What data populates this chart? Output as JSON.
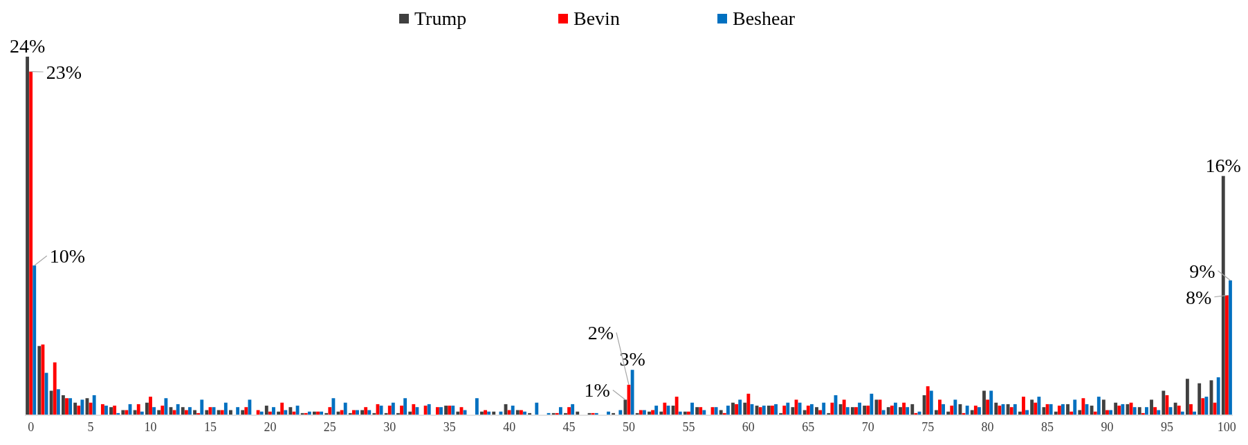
{
  "chart_data": {
    "type": "bar",
    "legend": "top",
    "categories": [
      "0",
      null,
      null,
      null,
      null,
      "5",
      null,
      null,
      null,
      null,
      "10",
      null,
      null,
      null,
      null,
      "15",
      null,
      null,
      null,
      null,
      "20",
      null,
      null,
      null,
      null,
      "25",
      null,
      null,
      null,
      null,
      "30",
      null,
      null,
      null,
      null,
      "35",
      null,
      null,
      null,
      null,
      "40",
      null,
      null,
      null,
      null,
      "45",
      null,
      null,
      null,
      null,
      "50",
      null,
      null,
      null,
      null,
      "55",
      null,
      null,
      null,
      null,
      "60",
      null,
      null,
      null,
      null,
      "65",
      null,
      null,
      null,
      null,
      "70",
      null,
      null,
      null,
      null,
      "75",
      null,
      null,
      null,
      null,
      "80",
      null,
      null,
      null,
      null,
      "85",
      null,
      null,
      null,
      null,
      "90",
      null,
      null,
      null,
      null,
      "95",
      null,
      null,
      null,
      null,
      "100"
    ],
    "series": [
      {
        "name": "Trump",
        "color": "#404040",
        "values": [
          24,
          4.6,
          1.6,
          1.3,
          0.8,
          1.1,
          0,
          0.5,
          0.3,
          0.3,
          0.8,
          0.3,
          0.5,
          0.5,
          0.3,
          0.3,
          0.3,
          0.3,
          0.3,
          0,
          0.6,
          0.2,
          0.5,
          0.1,
          0.2,
          0.1,
          0.2,
          0.1,
          0.3,
          0.1,
          0.1,
          0.1,
          0.2,
          0,
          0,
          0.6,
          0.2,
          0,
          0.2,
          0.2,
          0.7,
          0.3,
          0.1,
          0,
          0.1,
          0.1,
          0.2,
          0.1,
          0,
          0.1,
          1,
          0.1,
          0.2,
          0.2,
          0.6,
          0.2,
          0.5,
          0,
          0.3,
          0.8,
          0.8,
          0.6,
          0.6,
          0.1,
          0.5,
          0.3,
          0.5,
          0.1,
          0.7,
          0.5,
          0.6,
          1.0,
          0.5,
          0.5,
          0.7,
          1.3,
          0.3,
          0.2,
          0.7,
          0.3,
          1.6,
          0.8,
          0.7,
          0.2,
          1.0,
          0.5,
          0.2,
          0.7,
          0.3,
          0.6,
          1.0,
          0.8,
          0.7,
          0.5,
          1.0,
          1.6,
          0.8,
          2.4,
          2.1,
          2.3,
          16
        ],
        "value_labels": [
          "24%",
          null,
          null,
          null,
          null,
          null,
          null,
          null,
          null,
          null,
          null,
          null,
          null,
          null,
          null,
          null,
          null,
          null,
          null,
          null,
          null,
          null,
          null,
          null,
          null,
          null,
          null,
          null,
          null,
          null,
          null,
          null,
          null,
          null,
          null,
          null,
          null,
          null,
          null,
          null,
          null,
          null,
          null,
          null,
          null,
          null,
          null,
          null,
          null,
          null,
          "1%",
          null,
          null,
          null,
          null,
          null,
          null,
          null,
          null,
          null,
          null,
          null,
          null,
          null,
          null,
          null,
          null,
          null,
          null,
          null,
          null,
          null,
          null,
          null,
          null,
          null,
          null,
          null,
          null,
          null,
          null,
          null,
          null,
          null,
          null,
          null,
          null,
          null,
          null,
          null,
          null,
          null,
          null,
          null,
          null,
          null,
          null,
          null,
          null,
          null,
          "16%"
        ]
      },
      {
        "name": "Bevin",
        "color": "#ff0000",
        "values": [
          23,
          4.7,
          3.5,
          1.1,
          0.6,
          0.8,
          0.7,
          0.6,
          0.3,
          0.7,
          1.2,
          0.6,
          0.3,
          0.3,
          0.1,
          0.5,
          0.3,
          0,
          0.5,
          0.3,
          0.2,
          0.8,
          0.2,
          0.1,
          0.2,
          0.5,
          0.3,
          0.3,
          0.5,
          0.7,
          0.6,
          0.6,
          0.7,
          0.6,
          0.5,
          0.6,
          0.5,
          0,
          0.3,
          0,
          0.3,
          0.3,
          0,
          0,
          0.1,
          0.5,
          0,
          0.1,
          0,
          0,
          2,
          0.3,
          0.3,
          0.8,
          1.2,
          0.2,
          0.5,
          0.5,
          0.1,
          0.7,
          1.4,
          0.5,
          0.6,
          0.6,
          1.0,
          0.6,
          0.3,
          0.8,
          1.0,
          0.5,
          0.6,
          1.0,
          0.6,
          0.8,
          0.1,
          1.9,
          1.0,
          0.6,
          0.1,
          0.6,
          1.0,
          0.6,
          0.5,
          1.2,
          0.8,
          0.7,
          0.6,
          0.2,
          1.1,
          0.2,
          0.3,
          0.6,
          0.8,
          0.1,
          0.5,
          1.3,
          0.6,
          0.7,
          1.1,
          0.8,
          8
        ],
        "value_labels": [
          "23%",
          null,
          null,
          null,
          null,
          null,
          null,
          null,
          null,
          null,
          null,
          null,
          null,
          null,
          null,
          null,
          null,
          null,
          null,
          null,
          null,
          null,
          null,
          null,
          null,
          null,
          null,
          null,
          null,
          null,
          null,
          null,
          null,
          null,
          null,
          null,
          null,
          null,
          null,
          null,
          null,
          null,
          null,
          null,
          null,
          null,
          null,
          null,
          null,
          null,
          "2%",
          null,
          null,
          null,
          null,
          null,
          null,
          null,
          null,
          null,
          null,
          null,
          null,
          null,
          null,
          null,
          null,
          null,
          null,
          null,
          null,
          null,
          null,
          null,
          null,
          null,
          null,
          null,
          null,
          null,
          null,
          null,
          null,
          null,
          null,
          null,
          null,
          null,
          null,
          null,
          null,
          null,
          null,
          null,
          null,
          null,
          null,
          null,
          null,
          null,
          "8%"
        ]
      },
      {
        "name": "Beshear",
        "color": "#0070c0",
        "values": [
          10,
          2.8,
          1.7,
          1.1,
          1.0,
          1.3,
          0.6,
          0.1,
          0.7,
          0.2,
          0.5,
          1.1,
          0.7,
          0.5,
          1.0,
          0.5,
          0.8,
          0.5,
          1.0,
          0.2,
          0.5,
          0.3,
          0.6,
          0.2,
          0.2,
          1.1,
          0.8,
          0.3,
          0.3,
          0.6,
          0.8,
          1.1,
          0.5,
          0.7,
          0.5,
          0.6,
          0.3,
          1.1,
          0.2,
          0.2,
          0.6,
          0.2,
          0.8,
          0.1,
          0.5,
          0.7,
          0,
          0.1,
          0.2,
          0.3,
          3,
          0.3,
          0.6,
          0.6,
          0.2,
          0.8,
          0.3,
          0.5,
          0.6,
          1.0,
          0.7,
          0.6,
          0.7,
          0.8,
          0.8,
          0.7,
          0.8,
          1.3,
          0.5,
          0.8,
          1.4,
          0.3,
          0.8,
          0.5,
          0.2,
          1.6,
          0.7,
          1.0,
          0.6,
          0.5,
          1.6,
          0.7,
          0.7,
          0.3,
          1.2,
          0.7,
          0.7,
          1.0,
          0.7,
          1.2,
          0.3,
          0.7,
          0.5,
          0.5,
          0.3,
          0.5,
          0.2,
          0.2,
          1.2,
          2.5,
          9
        ],
        "value_labels": [
          "10%",
          null,
          null,
          null,
          null,
          null,
          null,
          null,
          null,
          null,
          null,
          null,
          null,
          null,
          null,
          null,
          null,
          null,
          null,
          null,
          null,
          null,
          null,
          null,
          null,
          null,
          null,
          null,
          null,
          null,
          null,
          null,
          null,
          null,
          null,
          null,
          null,
          null,
          null,
          null,
          null,
          null,
          null,
          null,
          null,
          null,
          null,
          null,
          null,
          null,
          "3%",
          null,
          null,
          null,
          null,
          null,
          null,
          null,
          null,
          null,
          null,
          null,
          null,
          null,
          null,
          null,
          null,
          null,
          null,
          null,
          null,
          null,
          null,
          null,
          null,
          null,
          null,
          null,
          null,
          null,
          null,
          null,
          null,
          null,
          null,
          null,
          null,
          null,
          null,
          null,
          null,
          null,
          null,
          null,
          null,
          null,
          null,
          null,
          null,
          null,
          "9%"
        ]
      }
    ]
  }
}
